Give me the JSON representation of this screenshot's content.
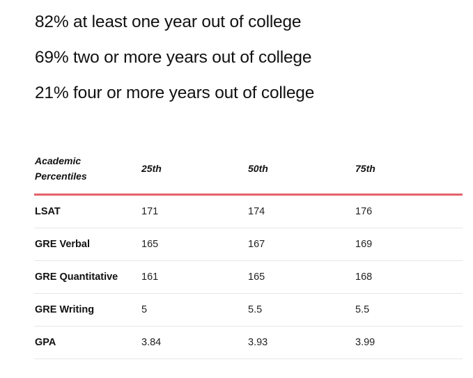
{
  "stats": [
    "82% at least one year out of college",
    "69% two or more years out of college",
    "21% four or more years out of college"
  ],
  "table": {
    "headers": {
      "label_line1": "Academic",
      "label_line2": "Percentiles",
      "p25": "25th",
      "p50": "50th",
      "p75": "75th"
    },
    "rows": [
      {
        "label": "LSAT",
        "p25": "171",
        "p50": "174",
        "p75": "176"
      },
      {
        "label": "GRE Verbal",
        "p25": "165",
        "p50": "167",
        "p75": "169"
      },
      {
        "label": "GRE Quantitative",
        "p25": "161",
        "p50": "165",
        "p75": "168"
      },
      {
        "label": "GRE Writing",
        "p25": "5",
        "p50": "5.5",
        "p75": "5.5"
      },
      {
        "label": "GPA",
        "p25": "3.84",
        "p50": "3.93",
        "p75": "3.99"
      }
    ]
  },
  "colors": {
    "header_rule": "#e3626a",
    "row_divider": "#e6e6e6",
    "text": "#111111"
  }
}
